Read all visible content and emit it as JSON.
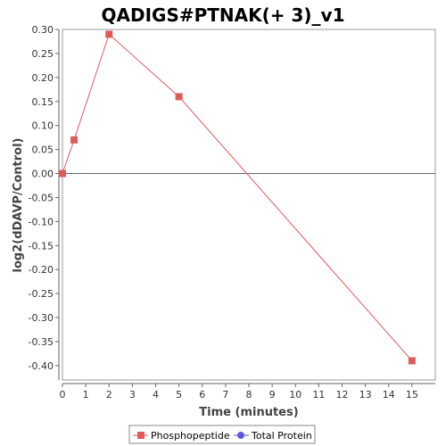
{
  "chart_data": {
    "type": "line",
    "title": "QADIGS#PTNAK(+ 3)_v1",
    "xlabel": "Time (minutes)",
    "ylabel": "log2(dDAVP/Control)",
    "xlim": [
      0,
      16
    ],
    "ylim": [
      -0.43,
      0.3
    ],
    "x_ticks": [
      0,
      1,
      2,
      3,
      4,
      5,
      6,
      7,
      8,
      9,
      10,
      11,
      12,
      13,
      14,
      15
    ],
    "y_ticks": [
      0.3,
      0.25,
      0.2,
      0.15,
      0.1,
      0.05,
      0.0,
      -0.05,
      -0.1,
      -0.15,
      -0.2,
      -0.25,
      -0.3,
      -0.35,
      -0.4
    ],
    "y_tick_labels": [
      "0.30",
      "0.25",
      "0.20",
      "0.15",
      "0.10",
      "0.05",
      "0.00",
      "-0.05",
      "-0.10",
      "-0.15",
      "-0.20",
      "-0.25",
      "-0.30",
      "-0.35",
      "-0.40"
    ],
    "zero_line": true,
    "grid": false,
    "legend_position": "bottom",
    "series": [
      {
        "name": "Phosphopeptide",
        "color": "#e05a5a",
        "marker": "square",
        "x": [
          0,
          0.5,
          2,
          5,
          15
        ],
        "y": [
          0.0,
          0.07,
          0.29,
          0.16,
          -0.39
        ]
      },
      {
        "name": "Total Protein",
        "color": "#5a5ae0",
        "marker": "circle",
        "x": [],
        "y": []
      }
    ]
  }
}
